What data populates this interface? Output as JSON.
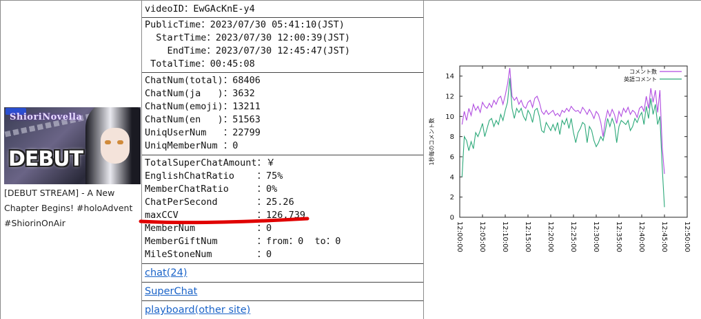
{
  "video": {
    "title": "[DEBUT STREAM] - A New Chapter Begins! #holoAdvent #ShiorinOnAir",
    "thumbnail_text": "DEBUT",
    "thumbnail_logo": "ShioriNovella"
  },
  "info": {
    "video_id": "videoID：EwGAcKnE-y4",
    "public_time": "PublicTime：2023/07/30 05:41:10(JST)",
    "start_time": "  StartTime：2023/07/30 12:00:39(JST)",
    "end_time": "    EndTime：2023/07/30 12:45:47(JST)",
    "total_time": " TotalTime：00:45:08",
    "chat_total": "ChatNum(total)：68406",
    "chat_ja": "ChatNum(ja   )：3632",
    "chat_emoji": "ChatNum(emoji)：13211",
    "chat_en": "ChatNum(en   )：51563",
    "uniq_user": "UniqUserNum   ：22799",
    "uniq_member": "UniqMemberNum ：0",
    "total_superchat": "TotalSuperChatAmount：￥",
    "english_ratio": "EnglishChatRatio    ：75%",
    "member_ratio": "MemberChatRatio     ：0%",
    "chat_per_second": "ChatPerSecond       ：25.26",
    "max_ccv": "maxCCV              ：126,739",
    "member_num": "MemberNum           ：0",
    "member_gift": "MemberGiftNum       ：from：0  to：0",
    "milestone": "MileStoneNum        ：0"
  },
  "links": {
    "chat": "chat(24)",
    "superchat": "SuperChat",
    "playboard": "playboard(other site)"
  },
  "colors": {
    "series_total": "#b04be0",
    "series_en": "#2aa878",
    "link": "#1a63c8",
    "highlight": "#e00000"
  },
  "chart_data": {
    "type": "line",
    "ylabel": "1秒毎のコメント数",
    "ylim": [
      0,
      15
    ],
    "yticks": [
      "0",
      "2",
      "4",
      "6",
      "8",
      "10",
      "12",
      "14"
    ],
    "xticks": [
      "12:00:00",
      "12:05:00",
      "12:10:00",
      "12:15:00",
      "12:20:00",
      "12:25:00",
      "12:30:00",
      "12:35:00",
      "12:40:00",
      "12:45:00",
      "12:50:00"
    ],
    "xlim_minutes": [
      0,
      50
    ],
    "legend_position": "top-right",
    "series": [
      {
        "name": "コメント数",
        "x": [
          0.5,
          1,
          1.5,
          2,
          2.5,
          3,
          3.5,
          4,
          4.5,
          5,
          5.5,
          6,
          6.5,
          7,
          7.5,
          8,
          8.5,
          9,
          9.5,
          10,
          10.5,
          11,
          11.5,
          12,
          12.5,
          13,
          13.5,
          14,
          14.5,
          15,
          15.5,
          16,
          16.5,
          17,
          17.5,
          18,
          18.5,
          19,
          19.5,
          20,
          20.5,
          21,
          21.5,
          22,
          22.5,
          23,
          23.5,
          24,
          24.5,
          25,
          25.5,
          26,
          26.5,
          27,
          27.5,
          28,
          28.5,
          29,
          29.5,
          30,
          30.5,
          31,
          31.5,
          32,
          32.5,
          33,
          33.5,
          34,
          34.5,
          35,
          35.5,
          36,
          36.5,
          37,
          37.5,
          38,
          38.5,
          39,
          39.5,
          40,
          40.5,
          41,
          41.5,
          42,
          42.5,
          43,
          43.5,
          44,
          44.5,
          45
        ],
        "values": [
          9.2,
          10.5,
          9.6,
          10.8,
          10.1,
          11.2,
          10.6,
          11.0,
          10.4,
          11.4,
          11.0,
          10.8,
          11.3,
          10.9,
          11.6,
          11.2,
          11.8,
          12.0,
          11.2,
          12.1,
          13.2,
          14.8,
          12.0,
          11.6,
          11.9,
          11.2,
          11.6,
          11.0,
          10.8,
          11.4,
          11.6,
          10.9,
          11.8,
          12.0,
          11.4,
          10.5,
          10.2,
          10.6,
          10.2,
          10.4,
          10.6,
          10.1,
          10.3,
          10.0,
          10.6,
          10.4,
          10.8,
          10.5,
          11.0,
          10.7,
          10.5,
          10.6,
          10.3,
          10.9,
          10.6,
          10.2,
          10.7,
          10.3,
          9.8,
          10.5,
          10.2,
          9.4,
          8.0,
          9.6,
          10.6,
          10.0,
          10.7,
          10.2,
          9.3,
          10.5,
          10.0,
          10.8,
          10.4,
          10.9,
          10.2,
          10.6,
          10.4,
          9.9,
          10.8,
          11.0,
          10.5,
          12.0,
          10.8,
          12.8,
          11.4,
          12.6,
          10.4,
          12.6,
          7.0,
          4.3
        ]
      },
      {
        "name": "英語コメント",
        "x": [
          0.5,
          1,
          1.5,
          2,
          2.5,
          3,
          3.5,
          4,
          4.5,
          5,
          5.5,
          6,
          6.5,
          7,
          7.5,
          8,
          8.5,
          9,
          9.5,
          10,
          10.5,
          11,
          11.5,
          12,
          12.5,
          13,
          13.5,
          14,
          14.5,
          15,
          15.5,
          16,
          16.5,
          17,
          17.5,
          18,
          18.5,
          19,
          19.5,
          20,
          20.5,
          21,
          21.5,
          22,
          22.5,
          23,
          23.5,
          24,
          24.5,
          25,
          25.5,
          26,
          26.5,
          27,
          27.5,
          28,
          28.5,
          29,
          29.5,
          30,
          30.5,
          31,
          31.5,
          32,
          32.5,
          33,
          33.5,
          34,
          34.5,
          35,
          35.5,
          36,
          36.5,
          37,
          37.5,
          38,
          38.5,
          39,
          39.5,
          40,
          40.5,
          41,
          41.5,
          42,
          42.5,
          43,
          43.5,
          44,
          44.5,
          45
        ],
        "values": [
          4.0,
          8.0,
          7.6,
          6.6,
          7.5,
          6.8,
          8.4,
          8.0,
          8.6,
          9.3,
          8.0,
          8.8,
          9.6,
          9.8,
          9.0,
          9.6,
          9.2,
          10.2,
          9.6,
          10.6,
          11.4,
          13.8,
          10.8,
          9.8,
          10.8,
          10.4,
          10.8,
          10.0,
          9.6,
          10.6,
          10.2,
          9.4,
          10.6,
          10.8,
          10.0,
          8.6,
          8.4,
          9.4,
          9.0,
          8.6,
          9.2,
          8.6,
          9.4,
          8.2,
          9.6,
          9.2,
          9.8,
          8.8,
          9.8,
          8.4,
          7.4,
          8.4,
          8.8,
          9.4,
          9.2,
          7.4,
          9.0,
          8.6,
          7.6,
          7.0,
          7.4,
          8.0,
          7.6,
          8.6,
          9.8,
          9.0,
          9.8,
          9.2,
          7.4,
          9.0,
          9.6,
          9.4,
          9.2,
          9.6,
          8.6,
          9.0,
          9.8,
          9.4,
          10.0,
          10.4,
          9.2,
          11.0,
          9.8,
          11.8,
          10.2,
          11.2,
          9.2,
          10.0,
          5.0,
          1.0
        ]
      }
    ]
  }
}
